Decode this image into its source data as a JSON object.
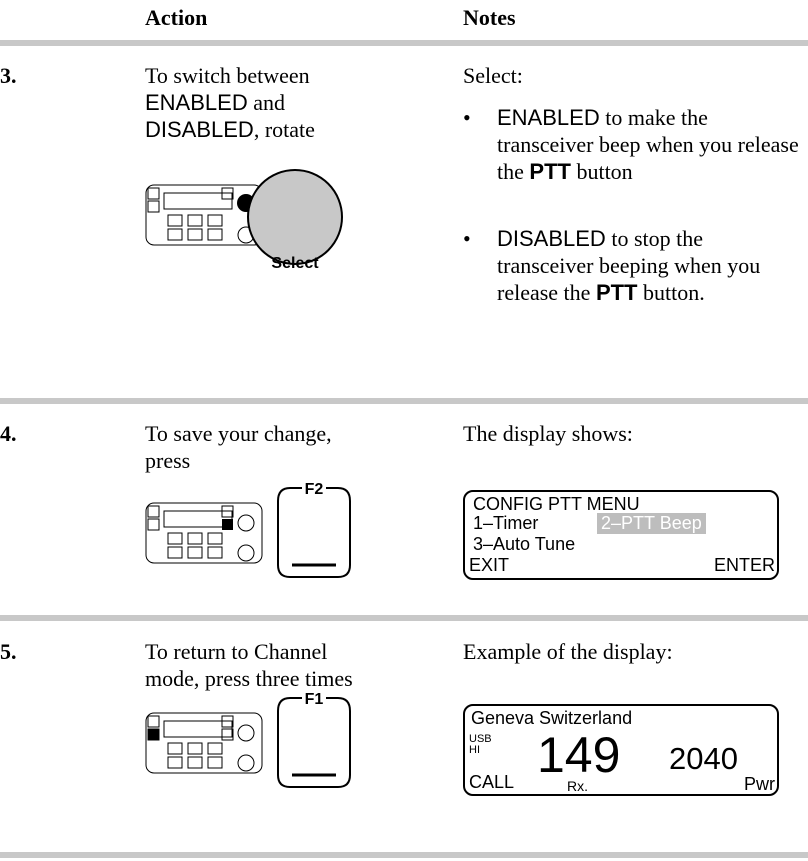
{
  "header": {
    "action": "Action",
    "notes": "Notes"
  },
  "rows": [
    {
      "number": "3.",
      "action": [
        "To switch between",
        "ENABLED",
        " and",
        "DISABLED",
        ", rotate"
      ],
      "control_label": "Select",
      "notes_intro": "Select:",
      "bullets": [
        [
          "ENABLED",
          " to make the transceiver beep when you release the ",
          "PTT",
          " button"
        ],
        [
          "DISABLED",
          " to stop the transceiver beeping when you release the ",
          "PTT",
          " button."
        ]
      ]
    },
    {
      "number": "4.",
      "action": [
        "To save your change, press"
      ],
      "control_label": "F2",
      "notes_intro": "The display shows:",
      "display": [
        "CONFIG PTT MENU",
        "1–Timer",
        "2–PTT Beep",
        "3–Auto Tune",
        "EXIT",
        "ENTER"
      ]
    },
    {
      "number": "5.",
      "action": [
        "To return to Channel mode, press three times"
      ],
      "control_label": "F1",
      "notes_intro": "Example of the display:",
      "display": [
        "Geneva Switzerland",
        "USB",
        "HI",
        "149",
        "2040",
        "CALL",
        "Rx.",
        "Pwr"
      ]
    }
  ]
}
